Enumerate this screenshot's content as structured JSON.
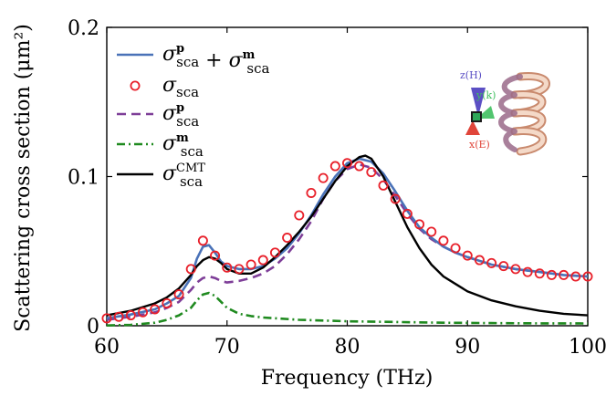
{
  "chart_data": {
    "type": "line",
    "xlabel": "Frequency (THz)",
    "ylabel": "Scattering cross section (μm²)",
    "xlim": [
      60,
      100
    ],
    "ylim": [
      0,
      0.2
    ],
    "xticks": [
      60,
      70,
      80,
      90,
      100
    ],
    "xtick_labels": [
      "60",
      "70",
      "80",
      "90",
      "100"
    ],
    "yticks": [
      0,
      0.1,
      0.2
    ],
    "ytick_labels": [
      "0",
      "0.1",
      "0.2"
    ],
    "grid": false,
    "legend_position": "top-left",
    "series": [
      {
        "name": "σsca^p + σsca^m",
        "style": "solid",
        "color": "#4a72b8",
        "x": [
          60,
          62,
          64,
          65,
          66,
          67,
          67.5,
          68,
          68.5,
          69,
          69.5,
          70,
          71,
          72,
          73,
          74,
          75,
          76,
          77,
          78,
          79,
          80,
          81,
          82,
          83,
          84,
          85,
          86,
          87,
          88,
          89,
          90,
          92,
          94,
          96,
          98,
          100
        ],
        "y": [
          0.005,
          0.0075,
          0.011,
          0.015,
          0.02,
          0.032,
          0.045,
          0.053,
          0.054,
          0.049,
          0.043,
          0.04,
          0.038,
          0.038,
          0.04,
          0.045,
          0.052,
          0.062,
          0.074,
          0.088,
          0.1,
          0.109,
          0.112,
          0.11,
          0.102,
          0.09,
          0.077,
          0.066,
          0.059,
          0.053,
          0.049,
          0.046,
          0.041,
          0.038,
          0.036,
          0.034,
          0.033
        ]
      },
      {
        "name": "σsca",
        "style": "markers",
        "color": "#e8202a",
        "x": [
          60,
          61,
          62,
          63,
          64,
          65,
          66,
          67,
          68,
          69,
          70,
          71,
          72,
          73,
          74,
          75,
          76,
          77,
          78,
          79,
          80,
          81,
          82,
          83,
          84,
          85,
          86,
          87,
          88,
          89,
          90,
          91,
          92,
          93,
          94,
          95,
          96,
          97,
          98,
          99,
          100
        ],
        "y": [
          0.005,
          0.006,
          0.007,
          0.009,
          0.011,
          0.015,
          0.021,
          0.038,
          0.057,
          0.047,
          0.039,
          0.038,
          0.041,
          0.044,
          0.049,
          0.059,
          0.074,
          0.089,
          0.099,
          0.107,
          0.109,
          0.107,
          0.103,
          0.094,
          0.085,
          0.075,
          0.068,
          0.063,
          0.057,
          0.052,
          0.047,
          0.044,
          0.042,
          0.04,
          0.038,
          0.036,
          0.035,
          0.034,
          0.034,
          0.033,
          0.033
        ]
      },
      {
        "name": "σsca^p",
        "style": "dashed",
        "color": "#7e3e98",
        "x": [
          60,
          62,
          64,
          65,
          66,
          67,
          67.5,
          68,
          68.5,
          69,
          69.5,
          70,
          71,
          72,
          73,
          74,
          75,
          76,
          77,
          78,
          79,
          80,
          81,
          82,
          83,
          84,
          85,
          86,
          87,
          88,
          89,
          90,
          92,
          94,
          96,
          98,
          100
        ],
        "y": [
          0.004,
          0.006,
          0.009,
          0.012,
          0.016,
          0.024,
          0.029,
          0.032,
          0.033,
          0.032,
          0.03,
          0.029,
          0.03,
          0.032,
          0.035,
          0.04,
          0.048,
          0.058,
          0.07,
          0.085,
          0.097,
          0.105,
          0.108,
          0.106,
          0.098,
          0.087,
          0.075,
          0.065,
          0.058,
          0.053,
          0.049,
          0.046,
          0.041,
          0.038,
          0.036,
          0.034,
          0.033
        ]
      },
      {
        "name": "σsca^m",
        "style": "dashdot",
        "color": "#1f8a1f",
        "x": [
          60,
          62,
          64,
          65,
          66,
          67,
          67.5,
          68,
          68.5,
          69,
          69.5,
          70,
          71,
          72,
          73,
          74,
          76,
          78,
          80,
          84,
          88,
          92,
          96,
          100
        ],
        "y": [
          0.0002,
          0.0006,
          0.002,
          0.004,
          0.007,
          0.012,
          0.017,
          0.021,
          0.022,
          0.02,
          0.016,
          0.012,
          0.008,
          0.0065,
          0.0055,
          0.005,
          0.004,
          0.0035,
          0.003,
          0.0025,
          0.002,
          0.0018,
          0.0016,
          0.0015
        ]
      },
      {
        "name": "σsca^CMT",
        "style": "solid",
        "color": "#000000",
        "x": [
          60,
          62,
          64,
          65,
          66,
          67,
          67.5,
          68,
          68.5,
          69,
          69.5,
          70,
          71,
          72,
          73,
          74,
          75,
          76,
          77,
          78,
          79,
          80,
          81,
          81.5,
          82,
          83,
          84,
          85,
          86,
          87,
          88,
          89,
          90,
          92,
          94,
          96,
          98,
          100
        ],
        "y": [
          0.007,
          0.01,
          0.015,
          0.019,
          0.025,
          0.034,
          0.04,
          0.044,
          0.046,
          0.045,
          0.042,
          0.038,
          0.035,
          0.035,
          0.039,
          0.046,
          0.054,
          0.063,
          0.073,
          0.085,
          0.097,
          0.107,
          0.113,
          0.114,
          0.112,
          0.1,
          0.083,
          0.066,
          0.052,
          0.041,
          0.033,
          0.028,
          0.023,
          0.017,
          0.013,
          0.01,
          0.008,
          0.007
        ]
      }
    ],
    "legend": [
      {
        "base": "σ",
        "sub": "sca",
        "sup": "p",
        "extra": " + ",
        "base2": "σ",
        "sub2": "sca",
        "sup2": "m"
      },
      {
        "base": "σ",
        "sub": "sca",
        "sup": ""
      },
      {
        "base": "σ",
        "sub": "sca",
        "sup": "p"
      },
      {
        "base": "σ",
        "sub": "sca",
        "sup": "m"
      },
      {
        "base": "σ",
        "sub": "sca",
        "sup": "CMT"
      }
    ],
    "inset": {
      "z_label": "z(H)",
      "y_label": "y(k)",
      "x_label": "x(E)",
      "z_color": "#5b4fc4",
      "y_color": "#3fbf5f",
      "x_color": "#e0453a"
    }
  }
}
